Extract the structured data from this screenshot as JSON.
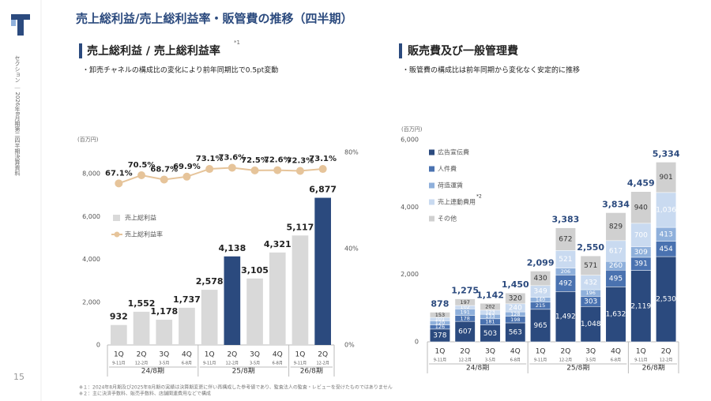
{
  "header": {
    "title": "売上総利益/売上総利益率・販管費の推移（四半期）",
    "sidebar_text": "セクション ｜ 2026年8月期第二四半期決算資料",
    "page_number": "15",
    "footnotes": [
      "※１：2024年8月期及び2025年8月期の実績は決算期変更に伴い再構成した参考値であり、監査法人の監査・レビューを受けたものではありません",
      "※２：主に決済手数料、販売手数料、店舗関連費用などで構成"
    ]
  },
  "chart_data": [
    {
      "type": "combo",
      "title": "売上総利益 / 売上総利益率",
      "title_note": "*1",
      "subtitle": "・卸売チャネルの構成比の変化により前年同期比で0.5pt変動",
      "y_unit": "(百万円)",
      "grid": false,
      "categories": [
        "1Q",
        "2Q",
        "3Q",
        "4Q",
        "1Q",
        "2Q",
        "3Q",
        "4Q",
        "1Q",
        "2Q"
      ],
      "category_sublabels": [
        "9-11月",
        "12-2月",
        "3-5月",
        "6-8月",
        "9-11月",
        "12-2月",
        "3-5月",
        "6-8月",
        "9-11月",
        "12-2月"
      ],
      "category_groups": [
        "24/8期",
        "24/8期",
        "24/8期",
        "24/8期",
        "25/8期",
        "25/8期",
        "25/8期",
        "25/8期",
        "26/8期",
        "26/8期"
      ],
      "ylim": [
        0,
        9000
      ],
      "yticks": [
        0,
        {
          "value": 2000,
          "label": "2,000"
        },
        {
          "value": 4000,
          "label": "4,000"
        },
        {
          "value": 6000,
          "label": "6,000"
        },
        {
          "value": 8000,
          "label": "8,000"
        }
      ],
      "y2lim": [
        0,
        80
      ],
      "y2ticks": [
        {
          "value": 0,
          "label": "0%"
        },
        {
          "value": 40,
          "label": "40%"
        },
        {
          "value": 80,
          "label": "80%"
        }
      ],
      "series": [
        {
          "name": "売上総利益",
          "type": "bar",
          "color": "#d9d9d9",
          "colors": [
            "#d9d9d9",
            "#d9d9d9",
            "#d9d9d9",
            "#d9d9d9",
            "#d9d9d9",
            "#2b4a7e",
            "#d9d9d9",
            "#d9d9d9",
            "#d9d9d9",
            "#2b4a7e"
          ],
          "values": [
            932,
            1552,
            1178,
            1737,
            2578,
            4138,
            3105,
            4321,
            5117,
            6877
          ],
          "value_labels": [
            "932",
            "1,552",
            "1,178",
            "1,737",
            "2,578",
            "4,138",
            "3,105",
            "4,321",
            "5,117",
            "6,877"
          ]
        },
        {
          "name": "売上総利益率",
          "type": "line",
          "axis": "y2",
          "color": "#e6c49a",
          "values": [
            67.1,
            70.5,
            68.7,
            69.9,
            73.1,
            73.6,
            72.5,
            72.6,
            72.3,
            73.1
          ],
          "value_labels": [
            "67.1%",
            "70.5%",
            "68.7%",
            "69.9%",
            "73.1%",
            "73.6%",
            "72.5%",
            "72.6%",
            "72.3%",
            "73.1%"
          ]
        }
      ]
    },
    {
      "type": "stacked_bar",
      "title": "販売費及び一般管理費",
      "subtitle": "・販管費の構成比は前年同期から変化なく安定的に推移",
      "y_unit": "(百万円)",
      "grid": false,
      "categories": [
        "1Q",
        "2Q",
        "3Q",
        "4Q",
        "1Q",
        "2Q",
        "3Q",
        "4Q",
        "1Q",
        "2Q"
      ],
      "category_sublabels": [
        "9-11月",
        "12-2月",
        "3-5月",
        "6-8月",
        "9-11月",
        "12-2月",
        "3-5月",
        "6-8月",
        "9-11月",
        "12-2月"
      ],
      "category_groups": [
        "24/8期",
        "24/8期",
        "24/8期",
        "24/8期",
        "25/8期",
        "25/8期",
        "25/8期",
        "25/8期",
        "26/8期",
        "26/8期"
      ],
      "ylim": [
        0,
        6000
      ],
      "yticks": [
        0,
        {
          "value": 2000,
          "label": "2,000"
        },
        {
          "value": 4000,
          "label": "4,000"
        },
        {
          "value": 6000,
          "label": "6,000"
        }
      ],
      "totals": [
        878,
        1275,
        1142,
        1450,
        2099,
        3383,
        2550,
        3834,
        4459,
        5334
      ],
      "total_labels": [
        "878",
        "1,275",
        "1,142",
        "1,450",
        "2,099",
        "3,383",
        "2,550",
        "3,834",
        "4,459",
        "5,334"
      ],
      "series": [
        {
          "name": "広告宣伝費",
          "color": "#2b4a7e",
          "label_color": "#ffffff",
          "values": [
            378,
            607,
            503,
            563,
            965,
            1492,
            1048,
            1632,
            2119,
            2530
          ],
          "value_labels": [
            "378",
            "607",
            "503",
            "563",
            "965",
            "1,492",
            "1,048",
            "1,632",
            "2,119",
            "2,530"
          ]
        },
        {
          "name": "人件費",
          "color": "#4a72b0",
          "label_color": "#ffffff",
          "values": [
            126,
            178,
            181,
            198,
            215,
            492,
            303,
            495,
            391,
            454
          ],
          "value_labels": [
            "126",
            "178",
            "181",
            "198",
            "215",
            "492",
            "303",
            "495",
            "391",
            "454"
          ]
        },
        {
          "name": "荷造運賃",
          "color": "#8fb0db",
          "label_color": "#ffffff",
          "values": [
            120,
            191,
            133,
            128,
            140,
            206,
            196,
            260,
            309,
            413
          ],
          "value_labels": [
            "120",
            "191",
            "133",
            "128",
            "140",
            "206",
            "196",
            "260",
            "309",
            "413"
          ]
        },
        {
          "name": "売上連動費用",
          "note": "*2",
          "color": "#c9daf0",
          "label_color": "#ffffff",
          "values": [
            101,
            102,
            123,
            240,
            349,
            521,
            432,
            617,
            700,
            1036
          ],
          "value_labels": [
            "101",
            "102",
            "123",
            "240",
            "349",
            "521",
            "432",
            "617",
            "700",
            "1,036"
          ]
        },
        {
          "name": "その他",
          "color": "#d0d0d0",
          "label_color": "#333333",
          "values": [
            153,
            197,
            202,
            320,
            430,
            672,
            571,
            829,
            940,
            901
          ],
          "value_labels": [
            "153",
            "197",
            "202",
            "320",
            "430",
            "672",
            "571",
            "829",
            "940",
            "901"
          ]
        }
      ]
    }
  ]
}
